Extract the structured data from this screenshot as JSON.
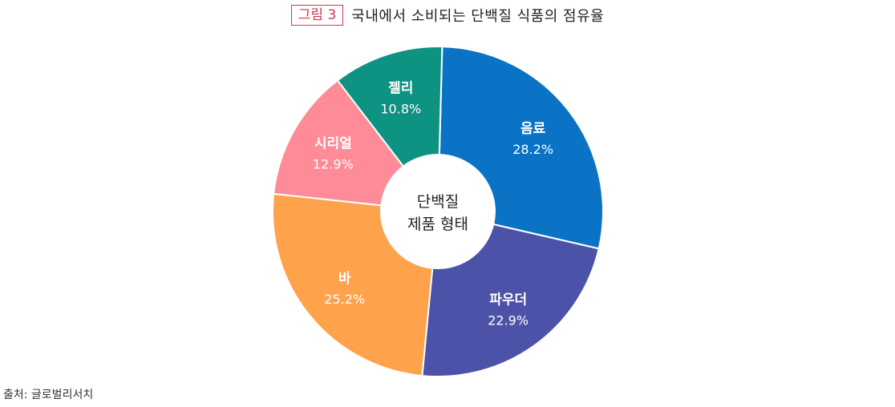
{
  "figure": {
    "badge": "그림 3",
    "title": "국내에서 소비되는 단백질 식품의 점유율"
  },
  "center_label": [
    "단백질",
    "제품 형태"
  ],
  "source": "출처: 글로벌리서치",
  "chart_data": {
    "type": "pie",
    "donut": true,
    "categories": [
      "음료",
      "파우더",
      "바",
      "시리얼",
      "젤리"
    ],
    "values": [
      28.2,
      22.9,
      25.2,
      12.9,
      10.8
    ],
    "value_labels": [
      "28.2%",
      "22.9%",
      "25.2%",
      "12.9%",
      "10.8%"
    ],
    "colors": [
      "#0a73c6",
      "#4b52a8",
      "#fea24c",
      "#fe8b97",
      "#0e9281"
    ],
    "start": "top",
    "direction": "clockwise",
    "legend": "none"
  }
}
